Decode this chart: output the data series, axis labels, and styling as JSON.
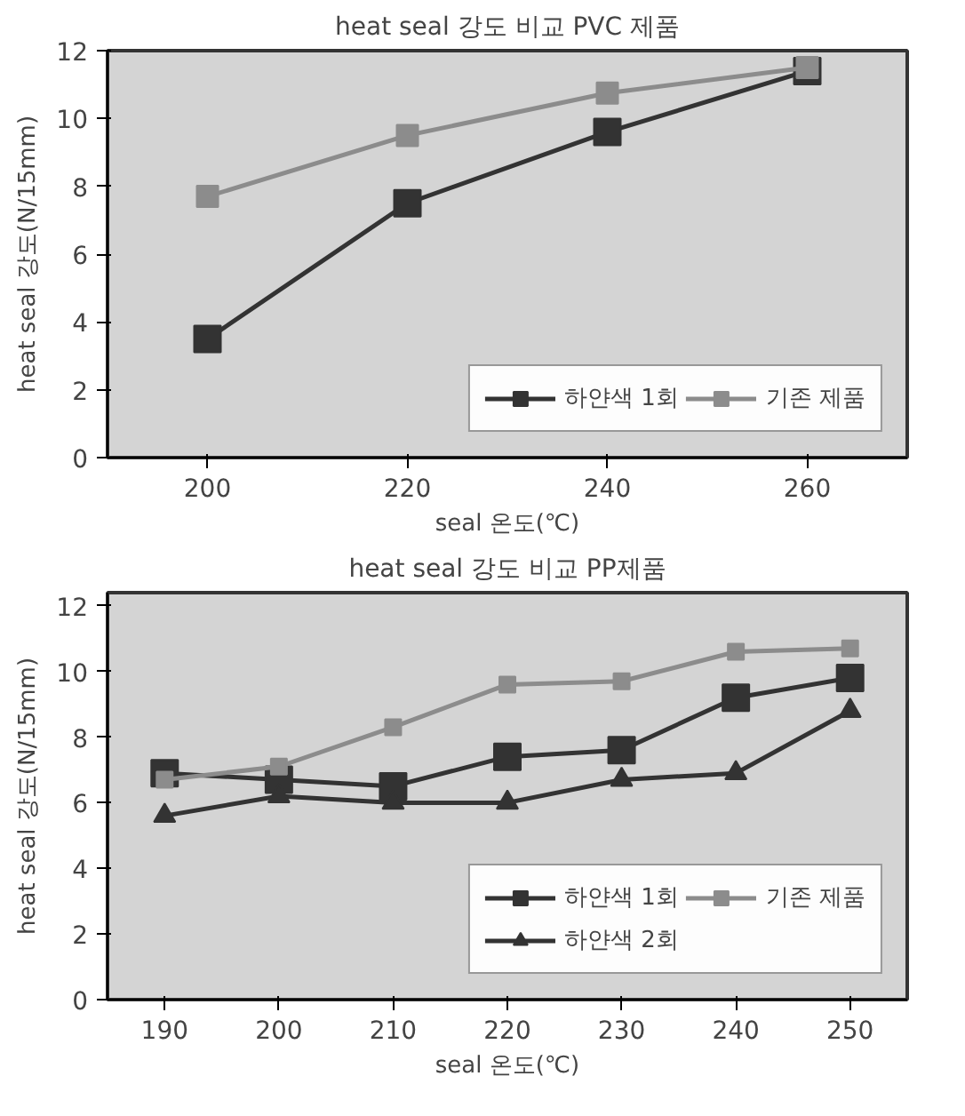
{
  "chart_data": [
    {
      "type": "line",
      "title": "heat seal 강도 비교 PVC 제품",
      "xlabel": "seal 온도(℃)",
      "ylabel": "heat seal 강도(N/15mm)",
      "categories": [
        "200",
        "220",
        "240",
        "260"
      ],
      "ylim": [
        0,
        12
      ],
      "yticks": [
        0,
        2,
        4,
        6,
        8,
        10,
        12
      ],
      "legend": "bottom right",
      "marker": "square",
      "series": [
        {
          "name": "하얀색 1회",
          "color": "#333333",
          "values": [
            3.5,
            7.5,
            9.6,
            11.4
          ]
        },
        {
          "name": "기존 제품",
          "color": "#8c8c8c",
          "values": [
            7.7,
            9.5,
            10.75,
            11.5
          ]
        }
      ]
    },
    {
      "type": "line",
      "title": "heat seal 강도 비교 PP제품",
      "xlabel": "seal 온도(℃)",
      "ylabel": "heat seal 강도(N/15mm)",
      "categories": [
        "190",
        "200",
        "210",
        "220",
        "230",
        "240",
        "250"
      ],
      "ylim": [
        0,
        12.4
      ],
      "yticks": [
        0,
        2,
        4,
        6,
        8,
        10,
        12
      ],
      "legend": "bottom right",
      "marker": "square",
      "series": [
        {
          "name": "하얀색 1회",
          "color": "#333333",
          "values": [
            6.9,
            6.7,
            6.5,
            7.4,
            7.6,
            9.2,
            9.8
          ]
        },
        {
          "name": "하얀색 2회",
          "color": "#333333",
          "marker": "triangle",
          "values": [
            5.6,
            6.2,
            6.0,
            6.0,
            6.7,
            6.9,
            8.8
          ]
        },
        {
          "name": "기존 제품",
          "color": "#8c8c8c",
          "values": [
            6.7,
            7.1,
            8.3,
            9.6,
            9.7,
            10.6,
            10.7
          ]
        }
      ]
    }
  ]
}
